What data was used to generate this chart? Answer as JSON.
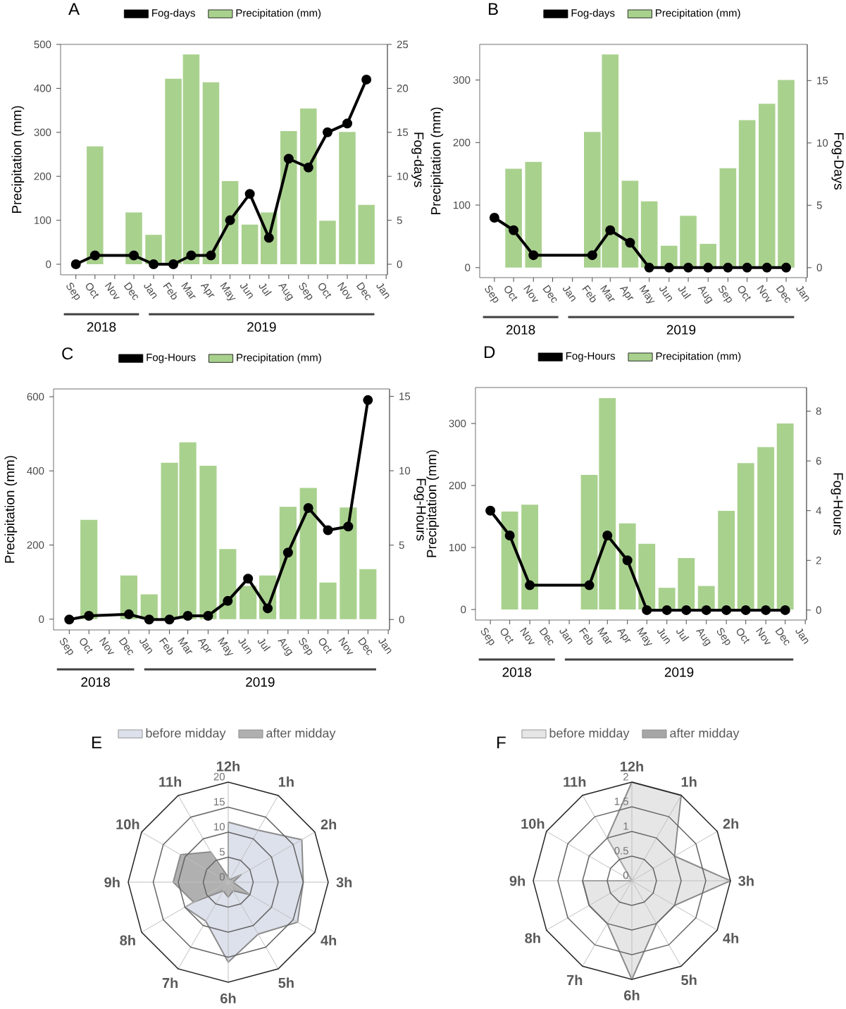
{
  "chart_data": [
    {
      "type": "bar",
      "title": "A",
      "ylabel": "Precipitation (mm)",
      "y2label": "Fog-days",
      "legend": "top",
      "marker": "circle",
      "xlim": [
        "2018-08-08",
        "2020-01-03"
      ],
      "xticks": [
        {
          "value": "2018-09",
          "label": "Sep"
        },
        {
          "value": "2018-10",
          "label": "Oct"
        },
        {
          "value": "2018-11",
          "label": "Nov"
        },
        {
          "value": "2018-12",
          "label": "Dec"
        },
        {
          "value": "2019-01",
          "label": "Jan"
        },
        {
          "value": "2019-02",
          "label": "Feb"
        },
        {
          "value": "2019-03",
          "label": "Mar"
        },
        {
          "value": "2019-04",
          "label": "Apr"
        },
        {
          "value": "2019-05",
          "label": "May"
        },
        {
          "value": "2019-06",
          "label": "Jun"
        },
        {
          "value": "2019-07",
          "label": "Jul"
        },
        {
          "value": "2019-08",
          "label": "Aug"
        },
        {
          "value": "2019-09",
          "label": "Sep"
        },
        {
          "value": "2019-10",
          "label": "Oct"
        },
        {
          "value": "2019-11",
          "label": "Nov"
        },
        {
          "value": "2019-12",
          "label": "Dec"
        },
        {
          "value": "2020-01",
          "label": "Jan"
        }
      ],
      "ylim": [
        -24,
        500
      ],
      "yticks": [
        0,
        100,
        200,
        300,
        400,
        500
      ],
      "y2lim": [
        -1.2,
        25
      ],
      "y2ticks": [
        0,
        5,
        10,
        15,
        20,
        25
      ],
      "annotations": [
        "2018",
        "2019"
      ],
      "series": [
        {
          "name": "Fog-days",
          "type": "line",
          "axis": "y2",
          "color": "#000000",
          "x": [
            "2018-09",
            "2018-10",
            "2018-12",
            "2019-01",
            "2019-02",
            "2019-03",
            "2019-04",
            "2019-05",
            "2019-06",
            "2019-07",
            "2019-08",
            "2019-09",
            "2019-10",
            "2019-11",
            "2019-12"
          ],
          "values": [
            0,
            1,
            1,
            0,
            0,
            1,
            1,
            5,
            8,
            3,
            12,
            11,
            15,
            16,
            21
          ]
        },
        {
          "name": "Precipitation (mm)",
          "type": "bar",
          "color": "#a9d18e",
          "x": [
            "2018-10",
            "2018-12",
            "2019-01",
            "2019-02",
            "2019-03",
            "2019-04",
            "2019-05",
            "2019-06",
            "2019-07",
            "2019-08",
            "2019-09",
            "2019-10",
            "2019-11",
            "2019-12"
          ],
          "values": [
            268,
            118,
            67,
            422,
            477,
            414,
            189,
            90,
            118,
            303,
            354,
            99,
            301,
            135
          ]
        }
      ]
    },
    {
      "type": "bar",
      "title": "B",
      "ylabel": "Precipitation (mm)",
      "y2label": "Fog-Days",
      "legend": "top",
      "marker": "circle",
      "xlim": [
        "2018-08-09",
        "2020-01-03"
      ],
      "xticks": [
        {
          "value": "2018-09",
          "label": "Sep"
        },
        {
          "value": "2018-10",
          "label": "Oct"
        },
        {
          "value": "2018-11",
          "label": "Nov"
        },
        {
          "value": "2018-12",
          "label": "Dec"
        },
        {
          "value": "2019-01",
          "label": "Jan"
        },
        {
          "value": "2019-02",
          "label": "Feb"
        },
        {
          "value": "2019-03",
          "label": "Mar"
        },
        {
          "value": "2019-04",
          "label": "Apr"
        },
        {
          "value": "2019-05",
          "label": "May"
        },
        {
          "value": "2019-06",
          "label": "Jun"
        },
        {
          "value": "2019-07",
          "label": "Jul"
        },
        {
          "value": "2019-08",
          "label": "Aug"
        },
        {
          "value": "2019-09",
          "label": "Sep"
        },
        {
          "value": "2019-10",
          "label": "Oct"
        },
        {
          "value": "2019-11",
          "label": "Nov"
        },
        {
          "value": "2019-12",
          "label": "Dec"
        },
        {
          "value": "2020-01",
          "label": "Jan"
        }
      ],
      "ylim": [
        -16,
        357
      ],
      "yticks": [
        0,
        100,
        200,
        300
      ],
      "y2lim": [
        -0.8,
        17.9
      ],
      "y2ticks": [
        0,
        5,
        10,
        15
      ],
      "annotations": [
        "2018",
        "2019"
      ],
      "series": [
        {
          "name": "Fog-days",
          "type": "line",
          "axis": "y2",
          "color": "#000000",
          "x": [
            "2018-09",
            "2018-10",
            "2018-11",
            "2019-02",
            "2019-03",
            "2019-04",
            "2019-05",
            "2019-06",
            "2019-07",
            "2019-08",
            "2019-09",
            "2019-10",
            "2019-11",
            "2019-12"
          ],
          "values": [
            4,
            3,
            1,
            1,
            3,
            2,
            0,
            0,
            0,
            0,
            0,
            0,
            0,
            0
          ]
        },
        {
          "name": "Precipitation (mm)",
          "type": "bar",
          "color": "#a9d18e",
          "x": [
            "2018-10",
            "2018-11",
            "2019-02",
            "2019-03",
            "2019-04",
            "2019-05",
            "2019-06",
            "2019-07",
            "2019-08",
            "2019-09",
            "2019-10",
            "2019-11",
            "2019-12"
          ],
          "values": [
            158,
            169,
            217,
            341,
            139,
            106,
            35,
            83,
            38,
            159,
            236,
            262,
            300
          ]
        }
      ]
    },
    {
      "type": "bar",
      "title": "C",
      "ylabel": "Precipitation (mm)",
      "y2label": "Fog-Hours",
      "legend": "top",
      "marker": "circle",
      "xlim": [
        "2018-08-08",
        "2020-01-03"
      ],
      "xticks": [
        {
          "value": "2018-09",
          "label": "Sep"
        },
        {
          "value": "2018-10",
          "label": "Oct"
        },
        {
          "value": "2018-11",
          "label": "Nov"
        },
        {
          "value": "2018-12",
          "label": "Dec"
        },
        {
          "value": "2019-01",
          "label": "Jan"
        },
        {
          "value": "2019-02",
          "label": "Feb"
        },
        {
          "value": "2019-03",
          "label": "Mar"
        },
        {
          "value": "2019-04",
          "label": "Apr"
        },
        {
          "value": "2019-05",
          "label": "May"
        },
        {
          "value": "2019-06",
          "label": "Jun"
        },
        {
          "value": "2019-07",
          "label": "Jul"
        },
        {
          "value": "2019-08",
          "label": "Aug"
        },
        {
          "value": "2019-09",
          "label": "Sep"
        },
        {
          "value": "2019-10",
          "label": "Oct"
        },
        {
          "value": "2019-11",
          "label": "Nov"
        },
        {
          "value": "2019-12",
          "label": "Dec"
        },
        {
          "value": "2020-01",
          "label": "Jan"
        }
      ],
      "ylim": [
        -29,
        621
      ],
      "yticks": [
        0,
        200,
        400,
        600
      ],
      "y2lim": [
        -0.7,
        15.5
      ],
      "y2ticks": [
        0,
        5,
        10,
        15
      ],
      "annotations": [
        "2018",
        "2019"
      ],
      "series": [
        {
          "name": "Fog-Hours",
          "type": "line",
          "axis": "y2",
          "color": "#000000",
          "x": [
            "2018-09",
            "2018-10",
            "2018-12",
            "2019-01",
            "2019-02",
            "2019-03",
            "2019-04",
            "2019-05",
            "2019-06",
            "2019-07",
            "2019-08",
            "2019-09",
            "2019-10",
            "2019-11",
            "2019-12"
          ],
          "values": [
            0,
            0.25,
            0.35,
            0,
            0,
            0.25,
            0.25,
            1.25,
            2.75,
            0.75,
            4.5,
            7.5,
            6,
            6.25,
            14.75
          ]
        },
        {
          "name": "Precipitation (mm)",
          "type": "bar",
          "color": "#a9d18e",
          "x": [
            "2018-10",
            "2018-12",
            "2019-01",
            "2019-02",
            "2019-03",
            "2019-04",
            "2019-05",
            "2019-06",
            "2019-07",
            "2019-08",
            "2019-09",
            "2019-10",
            "2019-11",
            "2019-12"
          ],
          "values": [
            268,
            118,
            67,
            422,
            477,
            414,
            189,
            90,
            118,
            303,
            354,
            99,
            301,
            135
          ]
        }
      ]
    },
    {
      "type": "bar",
      "title": "D",
      "ylabel": "Precipitation (mm)",
      "y2label": "Fog-Hours",
      "legend": "top",
      "marker": "circle",
      "xlim": [
        "2018-08-09",
        "2020-01-03"
      ],
      "xticks": [
        {
          "value": "2018-09",
          "label": "Sep"
        },
        {
          "value": "2018-10",
          "label": "Oct"
        },
        {
          "value": "2018-11",
          "label": "Nov"
        },
        {
          "value": "2018-12",
          "label": "Dec"
        },
        {
          "value": "2019-01",
          "label": "Jan"
        },
        {
          "value": "2019-02",
          "label": "Feb"
        },
        {
          "value": "2019-03",
          "label": "Mar"
        },
        {
          "value": "2019-04",
          "label": "Apr"
        },
        {
          "value": "2019-05",
          "label": "May"
        },
        {
          "value": "2019-06",
          "label": "Jun"
        },
        {
          "value": "2019-07",
          "label": "Jul"
        },
        {
          "value": "2019-08",
          "label": "Aug"
        },
        {
          "value": "2019-09",
          "label": "Sep"
        },
        {
          "value": "2019-10",
          "label": "Oct"
        },
        {
          "value": "2019-11",
          "label": "Nov"
        },
        {
          "value": "2019-12",
          "label": "Dec"
        },
        {
          "value": "2020-01",
          "label": "Jan"
        }
      ],
      "ylim": [
        -17,
        358
      ],
      "yticks": [
        0,
        100,
        200,
        300
      ],
      "y2lim": [
        -0.4,
        8.95
      ],
      "y2ticks": [
        0,
        2,
        4,
        6,
        8
      ],
      "annotations": [
        "2018",
        "2019"
      ],
      "series": [
        {
          "name": "Fog-Hours",
          "type": "line",
          "axis": "y2",
          "color": "#000000",
          "x": [
            "2018-09",
            "2018-10",
            "2018-11",
            "2019-02",
            "2019-03",
            "2019-04",
            "2019-05",
            "2019-06",
            "2019-07",
            "2019-08",
            "2019-09",
            "2019-10",
            "2019-11",
            "2019-12"
          ],
          "values": [
            4,
            3,
            1,
            1,
            3,
            2,
            0,
            0,
            0,
            0,
            0,
            0,
            0,
            0
          ]
        },
        {
          "name": "Precipitation (mm)",
          "type": "bar",
          "color": "#a9d18e",
          "x": [
            "2018-10",
            "2018-11",
            "2019-02",
            "2019-03",
            "2019-04",
            "2019-05",
            "2019-06",
            "2019-07",
            "2019-08",
            "2019-09",
            "2019-10",
            "2019-11",
            "2019-12"
          ],
          "values": [
            158,
            169,
            217,
            341,
            139,
            106,
            35,
            83,
            38,
            159,
            236,
            262,
            300
          ]
        }
      ]
    },
    {
      "type": "radar",
      "title": "E",
      "legend": "top",
      "categories": [
        "12h",
        "1h",
        "2h",
        "3h",
        "4h",
        "5h",
        "6h",
        "7h",
        "8h",
        "9h",
        "10h",
        "11h"
      ],
      "ylim": [
        0,
        20
      ],
      "yticks": [
        0,
        5,
        10,
        15,
        20
      ],
      "series": [
        {
          "name": "before midday",
          "color": "#dde1ec",
          "values": [
            12,
            12,
            17,
            15,
            16,
            12,
            16,
            9,
            10,
            0,
            0,
            0
          ]
        },
        {
          "name": "after midday",
          "color": "#b0b0b0",
          "values": [
            1,
            0.5,
            3,
            1,
            5,
            2,
            3,
            2,
            8,
            11,
            11,
            7
          ]
        }
      ]
    },
    {
      "type": "radar",
      "title": "F",
      "legend": "top",
      "categories": [
        "12h",
        "1h",
        "2h",
        "3h",
        "4h",
        "5h",
        "6h",
        "7h",
        "8h",
        "9h",
        "10h",
        "11h"
      ],
      "ylim": [
        0,
        2
      ],
      "yticks": [
        0,
        0.5,
        1,
        1.5,
        2
      ],
      "series": [
        {
          "name": "before midday",
          "color": "#e6e6e6",
          "values": [
            2,
            2,
            1,
            2,
            1,
            1,
            2,
            1,
            1,
            1,
            0,
            1
          ]
        },
        {
          "name": "after midday",
          "color": "#a6a6a6",
          "values": [
            null,
            null,
            null,
            null,
            null,
            null,
            null,
            null,
            null,
            null,
            null,
            null
          ]
        }
      ]
    }
  ]
}
